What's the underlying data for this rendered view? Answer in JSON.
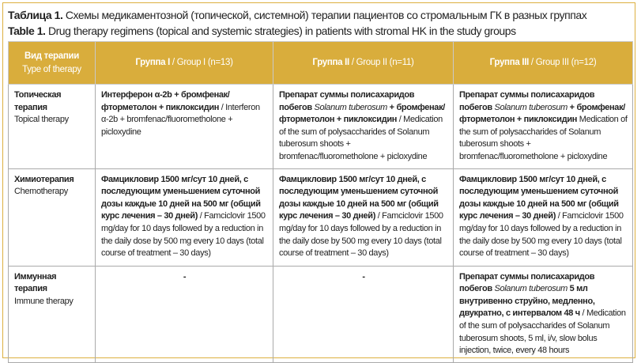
{
  "caption": {
    "ru_label": "Таблица 1.",
    "ru_text": " Схемы медикаментозной (топической, системной) терапии пациентов со стромальным ГК в разных группах",
    "en_label": "Table 1.",
    "en_text": " Drug therapy regimens (topical and systemic strategies) in patients with stromal HK in the study groups"
  },
  "colors": {
    "header_bg": "#d9ad3c",
    "frame": "#ddb040",
    "header_text": "#ffffff"
  },
  "header": [
    {
      "ru": "Вид терапии",
      "en": "Type of therapy"
    },
    {
      "ru": "Группа I",
      "en": " / Group I (n=13)"
    },
    {
      "ru": "Группа II",
      "en": " / Group II (n=11)"
    },
    {
      "ru": "Группа III",
      "en": " / Group III (n=12)"
    }
  ],
  "rows": [
    {
      "type_ru": "Топическая терапия",
      "type_en": "Topical therapy",
      "cells": [
        [
          {
            "t": "Интерферон α-2b + бромфенак/фторметолон + пиклоксидин",
            "s": "b"
          },
          {
            "t": " / Interferon α-2b + bromfenac/fluorometholone + picloxydine",
            "s": ""
          }
        ],
        [
          {
            "t": "Препарат суммы полисахаридов побегов ",
            "s": "b"
          },
          {
            "t": "Solanum tuberosum",
            "s": "i"
          },
          {
            "t": " + бромфенак/фторметолон + пиклоксидин",
            "s": "b"
          },
          {
            "t": " / Medication of the sum of polysaccharides of Solanum tuberosum shoots + bromfenac/fluorometholone + picloxydine",
            "s": ""
          }
        ],
        [
          {
            "t": "Препарат суммы полисахаридов побегов ",
            "s": "b"
          },
          {
            "t": "Solanum tuberosum",
            "s": "i"
          },
          {
            "t": " + бромфенак/фторметолон + пиклоксидин",
            "s": "b"
          },
          {
            "t": " Medication of the sum of polysaccharides of Solanum tuberosum shoots + bromfenac/fluorometholone + picloxydine",
            "s": ""
          }
        ]
      ]
    },
    {
      "type_ru": "Химиотерапия",
      "type_en": "Chemotherapy",
      "cells": [
        [
          {
            "t": "Фамцикловир 1500 мг/сут 10 дней, с последующим уменьшением суточной дозы каждые 10 дней на 500 мг (общий курс лечения – 30 дней)",
            "s": "b"
          },
          {
            "t": " / Famciclovir 1500 mg/day for 10 days followed by a reduction in the daily dose by 500 mg every 10 days (total course of treatment – 30 days)",
            "s": ""
          }
        ],
        [
          {
            "t": "Фамцикловир 1500 мг/сут 10 дней, с последующим уменьшением суточной дозы каждые 10 дней на 500 мг (общий курс лечения – 30 дней)",
            "s": "b"
          },
          {
            "t": " / Famciclovir 1500 mg/day for 10 days followed by a reduction in the daily dose by 500 mg every 10 days (total course of treatment – 30 days)",
            "s": ""
          }
        ],
        [
          {
            "t": "Фамцикловир 1500 мг/сут 10 дней, с последующим уменьшением суточной дозы каждые 10 дней на 500 мг (общий курс лечения – 30 дней)",
            "s": "b"
          },
          {
            "t": " / Famciclovir 1500 mg/day for 10 days followed by a reduction in the daily dose by 500 mg every 10 days (total course of treatment – 30 days)",
            "s": ""
          }
        ]
      ]
    },
    {
      "type_ru": "Иммунная терапия",
      "type_en": "Immune therapy",
      "cells": [
        [
          {
            "t": "-",
            "s": "b"
          }
        ],
        [
          {
            "t": "-",
            "s": "b"
          }
        ],
        [
          {
            "t": "Препарат суммы полисахаридов побегов ",
            "s": "b"
          },
          {
            "t": "Solanum tuberosum",
            "s": "i"
          },
          {
            "t": " 5 мл внутривенно струйно, медленно, двукратно, с интервалом 48 ч",
            "s": "b"
          },
          {
            "t": " / Medication of the sum of polysaccharides of Solanum tuberosum shoots, 5 ml, i/v, slow bolus injection, twice, every 48 hours",
            "s": ""
          }
        ]
      ]
    }
  ]
}
